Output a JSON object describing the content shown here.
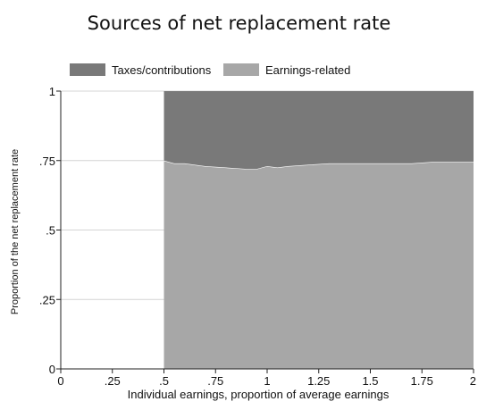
{
  "chart_data": {
    "type": "area",
    "title": "Sources of net replacement rate",
    "xlabel": "Individual earnings, proportion of average earnings",
    "ylabel": "Proportion of the net replacement rate",
    "xlim": [
      0,
      2
    ],
    "ylim": [
      0,
      1
    ],
    "xticks": [
      "0",
      ".25",
      ".5",
      ".75",
      "1",
      "1.25",
      "1.5",
      "1.75",
      "2"
    ],
    "yticks": [
      "0",
      ".25",
      ".5",
      ".75",
      "1"
    ],
    "grid": "horizontal",
    "legend_position": "top",
    "x": [
      0.5,
      0.55,
      0.6,
      0.7,
      0.8,
      0.9,
      0.95,
      1.0,
      1.05,
      1.1,
      1.2,
      1.3,
      1.4,
      1.5,
      1.6,
      1.7,
      1.8,
      1.9,
      2.0
    ],
    "series": [
      {
        "name": "Earnings-related",
        "color": "#a7a7a7",
        "values": [
          0.75,
          0.74,
          0.74,
          0.73,
          0.725,
          0.72,
          0.72,
          0.73,
          0.725,
          0.73,
          0.735,
          0.74,
          0.74,
          0.74,
          0.74,
          0.74,
          0.745,
          0.745,
          0.745
        ]
      },
      {
        "name": "Taxes/contributions",
        "color": "#797979",
        "values": [
          0.25,
          0.26,
          0.26,
          0.27,
          0.275,
          0.28,
          0.28,
          0.27,
          0.275,
          0.27,
          0.265,
          0.26,
          0.26,
          0.26,
          0.26,
          0.26,
          0.255,
          0.255,
          0.255
        ]
      }
    ]
  }
}
